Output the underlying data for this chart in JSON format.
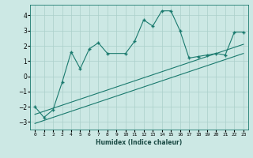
{
  "xlabel": "Humidex (Indice chaleur)",
  "xlim": [
    -0.5,
    23.5
  ],
  "ylim": [
    -3.5,
    4.7
  ],
  "yticks": [
    -3,
    -2,
    -1,
    0,
    1,
    2,
    3,
    4
  ],
  "xticks": [
    0,
    1,
    2,
    3,
    4,
    5,
    6,
    7,
    8,
    9,
    10,
    11,
    12,
    13,
    14,
    15,
    16,
    17,
    18,
    19,
    20,
    21,
    22,
    23
  ],
  "xtick_labels": [
    "0",
    "1",
    "2",
    "3",
    "4",
    "5",
    "6",
    "7",
    "8",
    "9",
    "10",
    "11",
    "12",
    "13",
    "14",
    "15",
    "16",
    "17",
    "18",
    "19",
    "20",
    "21",
    "22",
    "23"
  ],
  "line_color": "#1a7a6e",
  "bg_color": "#cce8e4",
  "grid_color": "#aacfca",
  "main_x": [
    0,
    1,
    2,
    3,
    4,
    5,
    6,
    7,
    8,
    10,
    11,
    12,
    13,
    14,
    15,
    16,
    17,
    18,
    19,
    20,
    21,
    22,
    23
  ],
  "main_y": [
    -2.0,
    -2.7,
    -2.2,
    -0.4,
    1.6,
    0.5,
    1.8,
    2.2,
    1.5,
    1.5,
    2.3,
    3.7,
    3.3,
    4.3,
    4.3,
    3.0,
    1.2,
    1.3,
    1.4,
    1.5,
    1.4,
    2.9,
    2.9
  ],
  "line1_x": [
    0,
    23
  ],
  "line1_y": [
    -2.5,
    2.1
  ],
  "line2_x": [
    0,
    23
  ],
  "line2_y": [
    -3.1,
    1.5
  ]
}
